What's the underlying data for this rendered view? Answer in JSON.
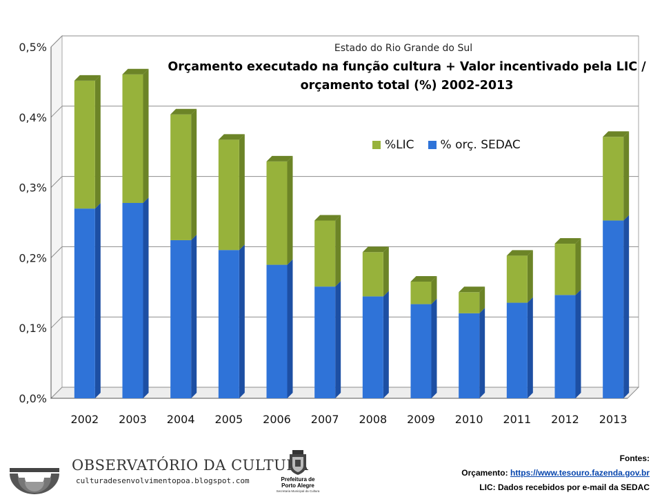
{
  "chart_data": {
    "type": "bar",
    "stacked": true,
    "subtitle": "Estado do Rio Grande do Sul",
    "title_line1": "Orçamento executado na função cultura + Valor incentivado pela LIC /",
    "title_line2": "orçamento total (%) 2002-2013",
    "categories": [
      "2002",
      "2003",
      "2004",
      "2005",
      "2006",
      "2007",
      "2008",
      "2009",
      "2010",
      "2011",
      "2012",
      "2013"
    ],
    "series": [
      {
        "name": "% orç. SEDAC",
        "values": [
          0.27,
          0.278,
          0.225,
          0.211,
          0.19,
          0.159,
          0.145,
          0.134,
          0.121,
          0.136,
          0.147,
          0.253
        ]
      },
      {
        "name": "%LIC",
        "values": [
          0.182,
          0.183,
          0.179,
          0.157,
          0.147,
          0.094,
          0.063,
          0.032,
          0.03,
          0.067,
          0.073,
          0.119
        ]
      }
    ],
    "yticks": [
      "0,0%",
      "0,1%",
      "0,2%",
      "0,3%",
      "0,4%",
      "0,5%"
    ],
    "ylim": [
      0,
      0.5
    ],
    "grid": true,
    "legend_position": "right-middle"
  },
  "legend": {
    "lic_label": "%LIC",
    "sedac_label": "% orç. SEDAC"
  },
  "colors": {
    "sedac": "#2f73d8",
    "sedac_side": "#1d4fa3",
    "sedac_top": "#4e8ae6",
    "lic": "#97b23b",
    "lic_side": "#6c8427",
    "lic_top": "#a9c24d"
  },
  "footer": {
    "logo_text": "OBSERVATÓRIO DA CULTURA",
    "blog": "culturadesenvolvimentopoa.blogspot.com",
    "prefeitura_line1": "Prefeitura de",
    "prefeitura_line2": "Porto Alegre",
    "prefeitura_sub": "Secretaria Municipal da Cultura",
    "sources_title": "Fontes:",
    "orcamento_label": "Orçamento:",
    "orcamento_url": "https://www.tesouro.fazenda.gov.br",
    "lic_note": "LIC: Dados recebidos por e-mail da SEDAC"
  }
}
